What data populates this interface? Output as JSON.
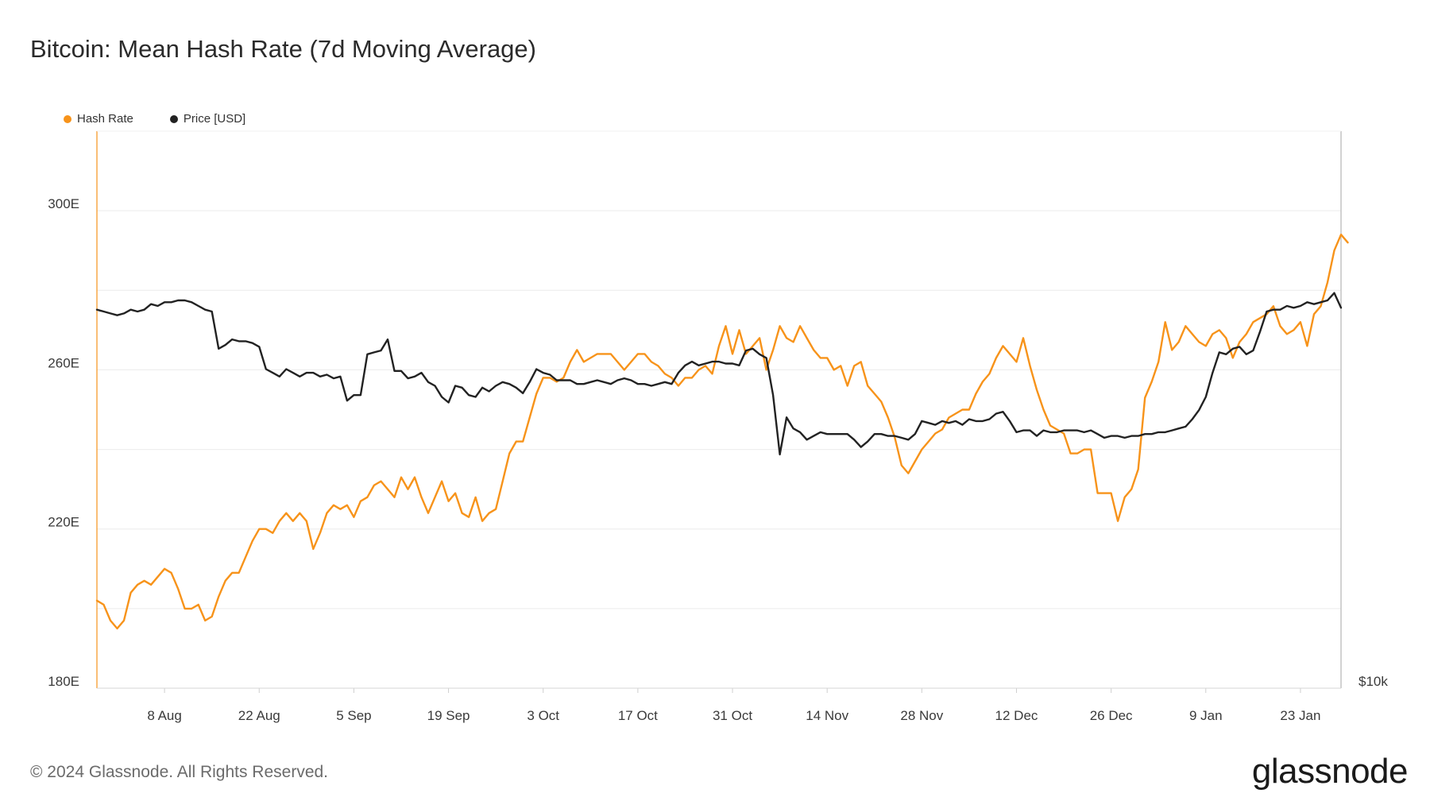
{
  "title": "Bitcoin: Mean Hash Rate (7d Moving Average)",
  "legend": [
    {
      "label": "Hash Rate",
      "color": "#f7931a"
    },
    {
      "label": "Price [USD]",
      "color": "#222222"
    }
  ],
  "footer": "© 2024 Glassnode. All Rights Reserved.",
  "brand": "glassnode",
  "chart_data": {
    "type": "line",
    "x_start": "2023-07-29",
    "x_ticks": [
      "8 Aug",
      "22 Aug",
      "5 Sep",
      "19 Sep",
      "3 Oct",
      "17 Oct",
      "31 Oct",
      "14 Nov",
      "28 Nov",
      "12 Dec",
      "26 Dec",
      "9 Jan",
      "23 Jan"
    ],
    "y_left_ticks": [
      "180E",
      "220E",
      "260E",
      "300E"
    ],
    "y_left_range": [
      180,
      320
    ],
    "y_right_label": "$10k",
    "grid": true,
    "legend_position": "top-left",
    "series": [
      {
        "name": "Hash Rate",
        "axis": "left",
        "color": "#f7931a",
        "x_step_days": 1,
        "values": [
          202,
          201,
          197,
          195,
          197,
          204,
          206,
          207,
          206,
          208,
          210,
          209,
          205,
          200,
          200,
          201,
          197,
          198,
          203,
          207,
          209,
          209,
          213,
          217,
          220,
          220,
          219,
          222,
          224,
          222,
          224,
          222,
          215,
          219,
          224,
          226,
          225,
          226,
          223,
          227,
          228,
          231,
          232,
          230,
          228,
          233,
          230,
          233,
          228,
          224,
          228,
          232,
          227,
          229,
          224,
          223,
          228,
          222,
          224,
          225,
          232,
          239,
          242,
          242,
          248,
          254,
          258,
          258,
          257,
          258,
          262,
          265,
          262,
          263,
          264,
          264,
          264,
          262,
          260,
          262,
          264,
          264,
          262,
          261,
          259,
          258,
          256,
          258,
          258,
          260,
          261,
          259,
          266,
          271,
          264,
          270,
          264,
          266,
          268,
          260,
          265,
          271,
          268,
          267,
          271,
          268,
          265,
          263,
          263,
          260,
          261,
          256,
          261,
          262,
          256,
          254,
          252,
          248,
          243,
          236,
          234,
          237,
          240,
          242,
          244,
          245,
          248,
          249,
          250,
          250,
          254,
          257,
          259,
          263,
          266,
          264,
          262,
          268,
          261,
          255,
          250,
          246,
          245,
          244,
          239,
          239,
          240,
          240,
          229,
          229,
          229,
          222,
          228,
          230,
          235,
          253,
          257,
          262,
          272,
          265,
          267,
          271,
          269,
          267,
          266,
          269,
          270,
          268,
          263,
          267,
          269,
          272,
          273,
          274,
          276,
          271,
          269,
          270,
          272,
          266,
          274,
          276,
          282,
          290,
          294,
          292
        ]
      },
      {
        "name": "Price [USD]",
        "axis": "right",
        "color": "#222222",
        "x_step_days": 1,
        "values": [
          2.94,
          2.93,
          2.92,
          2.91,
          2.92,
          2.94,
          2.93,
          2.94,
          2.97,
          2.96,
          2.98,
          2.98,
          2.99,
          2.99,
          2.98,
          2.96,
          2.94,
          2.93,
          2.73,
          2.75,
          2.78,
          2.77,
          2.77,
          2.76,
          2.74,
          2.62,
          2.6,
          2.58,
          2.62,
          2.6,
          2.58,
          2.6,
          2.6,
          2.58,
          2.59,
          2.57,
          2.58,
          2.45,
          2.48,
          2.48,
          2.7,
          2.71,
          2.72,
          2.78,
          2.61,
          2.61,
          2.57,
          2.58,
          2.6,
          2.55,
          2.53,
          2.47,
          2.44,
          2.53,
          2.52,
          2.48,
          2.47,
          2.52,
          2.5,
          2.53,
          2.55,
          2.54,
          2.52,
          2.49,
          2.55,
          2.62,
          2.6,
          2.59,
          2.56,
          2.56,
          2.56,
          2.54,
          2.54,
          2.55,
          2.56,
          2.55,
          2.54,
          2.56,
          2.57,
          2.56,
          2.54,
          2.54,
          2.53,
          2.54,
          2.55,
          2.54,
          2.6,
          2.64,
          2.66,
          2.64,
          2.65,
          2.66,
          2.66,
          2.65,
          2.65,
          2.64,
          2.72,
          2.73,
          2.7,
          2.68,
          2.48,
          2.16,
          2.36,
          2.3,
          2.28,
          2.24,
          2.26,
          2.28,
          2.27,
          2.27,
          2.27,
          2.27,
          2.24,
          2.2,
          2.23,
          2.27,
          2.27,
          2.26,
          2.26,
          2.25,
          2.24,
          2.27,
          2.34,
          2.33,
          2.32,
          2.34,
          2.33,
          2.34,
          2.32,
          2.35,
          2.34,
          2.34,
          2.35,
          2.38,
          2.39,
          2.34,
          2.28,
          2.29,
          2.29,
          2.26,
          2.29,
          2.28,
          2.28,
          2.29,
          2.29,
          2.29,
          2.28,
          2.29,
          2.27,
          2.25,
          2.26,
          2.26,
          2.25,
          2.26,
          2.26,
          2.27,
          2.27,
          2.28,
          2.28,
          2.29,
          2.3,
          2.31,
          2.35,
          2.4,
          2.47,
          2.6,
          2.71,
          2.7,
          2.73,
          2.74,
          2.7,
          2.72,
          2.82,
          2.93,
          2.94,
          2.94,
          2.96,
          2.95,
          2.96,
          2.98,
          2.97,
          2.98,
          2.99,
          3.03,
          2.95
        ]
      }
    ]
  }
}
